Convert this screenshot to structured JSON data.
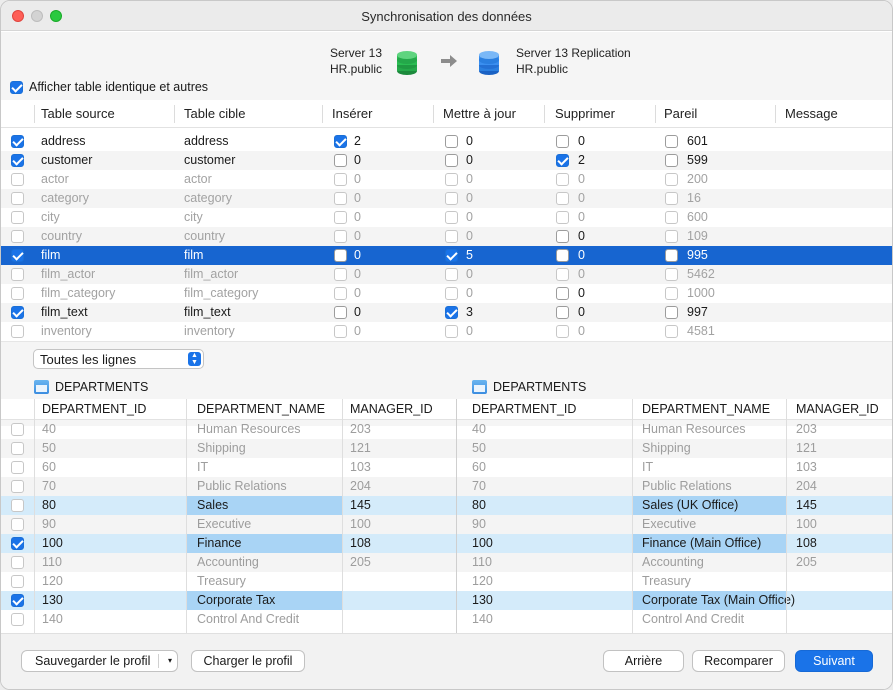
{
  "window": {
    "title": "Synchronisation des données"
  },
  "servers": {
    "source_name": "Server 13",
    "source_schema": "HR.public",
    "target_name": "Server 13 Replication",
    "target_schema": "HR.public"
  },
  "show_identical": {
    "label": "Afficher table identique et autres",
    "checked": true
  },
  "tables": {
    "headers": [
      "Table source",
      "Table cible",
      "Insérer",
      "Mettre à jour",
      "Supprimer",
      "Pareil",
      "Message"
    ],
    "rows": [
      {
        "checked": true,
        "dim": false,
        "selected": false,
        "source": "address",
        "target": "address",
        "insert": "2",
        "insert_on": true,
        "update": "0",
        "update_on": false,
        "delete": "0",
        "delete_on": false,
        "same": "601"
      },
      {
        "checked": true,
        "dim": false,
        "selected": false,
        "source": "customer",
        "target": "customer",
        "insert": "0",
        "insert_on": false,
        "update": "0",
        "update_on": false,
        "delete": "2",
        "delete_on": true,
        "same": "599"
      },
      {
        "checked": false,
        "dim": true,
        "selected": false,
        "source": "actor",
        "target": "actor",
        "insert": "0",
        "insert_on": false,
        "update": "0",
        "update_on": false,
        "delete": "0",
        "delete_on": false,
        "same": "200"
      },
      {
        "checked": false,
        "dim": true,
        "selected": false,
        "source": "category",
        "target": "category",
        "insert": "0",
        "insert_on": false,
        "update": "0",
        "update_on": false,
        "delete": "0",
        "delete_on": false,
        "same": "16"
      },
      {
        "checked": false,
        "dim": true,
        "selected": false,
        "source": "city",
        "target": "city",
        "insert": "0",
        "insert_on": false,
        "update": "0",
        "update_on": false,
        "delete": "0",
        "delete_on": false,
        "same": "600"
      },
      {
        "checked": false,
        "dim": true,
        "selected": false,
        "source": "country",
        "target": "country",
        "insert": "0",
        "insert_on": false,
        "update": "0",
        "update_on": false,
        "delete": "0",
        "delete_on": false,
        "same": "109",
        "delete_dark": true
      },
      {
        "checked": true,
        "dim": false,
        "selected": true,
        "source": "film",
        "target": "film",
        "insert": "0",
        "insert_on": false,
        "update": "5",
        "update_on": true,
        "delete": "0",
        "delete_on": false,
        "same": "995"
      },
      {
        "checked": false,
        "dim": true,
        "selected": false,
        "source": "film_actor",
        "target": "film_actor",
        "insert": "0",
        "insert_on": false,
        "update": "0",
        "update_on": false,
        "delete": "0",
        "delete_on": false,
        "same": "5462"
      },
      {
        "checked": false,
        "dim": true,
        "selected": false,
        "source": "film_category",
        "target": "film_category",
        "insert": "0",
        "insert_on": false,
        "update": "0",
        "update_on": false,
        "delete": "0",
        "delete_on": false,
        "same": "1000",
        "delete_dark": true
      },
      {
        "checked": true,
        "dim": false,
        "selected": false,
        "source": "film_text",
        "target": "film_text",
        "insert": "0",
        "insert_on": false,
        "update": "3",
        "update_on": true,
        "delete": "0",
        "delete_on": false,
        "same": "997"
      },
      {
        "checked": false,
        "dim": true,
        "selected": false,
        "source": "inventory",
        "target": "inventory",
        "insert": "0",
        "insert_on": false,
        "update": "0",
        "update_on": false,
        "delete": "0",
        "delete_on": false,
        "same": "4581"
      }
    ]
  },
  "filter": {
    "value": "Toutes les lignes"
  },
  "detail": {
    "left_table": "DEPARTMENTS",
    "right_table": "DEPARTMENTS",
    "headers": [
      "DEPARTMENT_ID",
      "DEPARTMENT_NAME",
      "MANAGER_ID"
    ],
    "rows": [
      {
        "checked": false,
        "diff": false,
        "l_id": "40",
        "l_name": "Human Resources",
        "l_mgr": "203",
        "r_id": "40",
        "r_name": "Human Resources",
        "r_mgr": "203"
      },
      {
        "checked": false,
        "diff": false,
        "l_id": "50",
        "l_name": "Shipping",
        "l_mgr": "121",
        "r_id": "50",
        "r_name": "Shipping",
        "r_mgr": "121"
      },
      {
        "checked": false,
        "diff": false,
        "l_id": "60",
        "l_name": "IT",
        "l_mgr": "103",
        "r_id": "60",
        "r_name": "IT",
        "r_mgr": "103"
      },
      {
        "checked": false,
        "diff": false,
        "l_id": "70",
        "l_name": "Public Relations",
        "l_mgr": "204",
        "r_id": "70",
        "r_name": "Public Relations",
        "r_mgr": "204"
      },
      {
        "checked": false,
        "diff": true,
        "l_id": "80",
        "l_name": "Sales",
        "l_mgr": "145",
        "r_id": "80",
        "r_name": "Sales (UK Office)",
        "r_mgr": "145"
      },
      {
        "checked": false,
        "diff": false,
        "l_id": "90",
        "l_name": "Executive",
        "l_mgr": "100",
        "r_id": "90",
        "r_name": "Executive",
        "r_mgr": "100"
      },
      {
        "checked": true,
        "diff": true,
        "l_id": "100",
        "l_name": "Finance",
        "l_mgr": "108",
        "r_id": "100",
        "r_name": "Finance (Main Office)",
        "r_mgr": "108"
      },
      {
        "checked": false,
        "diff": false,
        "l_id": "110",
        "l_name": "Accounting",
        "l_mgr": "205",
        "r_id": "110",
        "r_name": "Accounting",
        "r_mgr": "205"
      },
      {
        "checked": false,
        "diff": false,
        "l_id": "120",
        "l_name": "Treasury",
        "l_mgr": "",
        "r_id": "120",
        "r_name": "Treasury",
        "r_mgr": ""
      },
      {
        "checked": true,
        "diff": true,
        "l_id": "130",
        "l_name": "Corporate Tax",
        "l_mgr": "",
        "r_id": "130",
        "r_name": "Corporate Tax (Main Office)",
        "r_mgr": ""
      },
      {
        "checked": false,
        "diff": false,
        "l_id": "140",
        "l_name": "Control And Credit",
        "l_mgr": "",
        "r_id": "140",
        "r_name": "Control And Credit",
        "r_mgr": ""
      }
    ]
  },
  "footer": {
    "save_profile": "Sauvegarder le profil",
    "load_profile": "Charger le profil",
    "back": "Arrière",
    "compare": "Recomparer",
    "next": "Suivant"
  },
  "colors": {
    "accent": "#1a73e8",
    "selection": "#1765d0",
    "diff_row": "#d4ebfa",
    "diff_cell": "#a9d4f5"
  }
}
